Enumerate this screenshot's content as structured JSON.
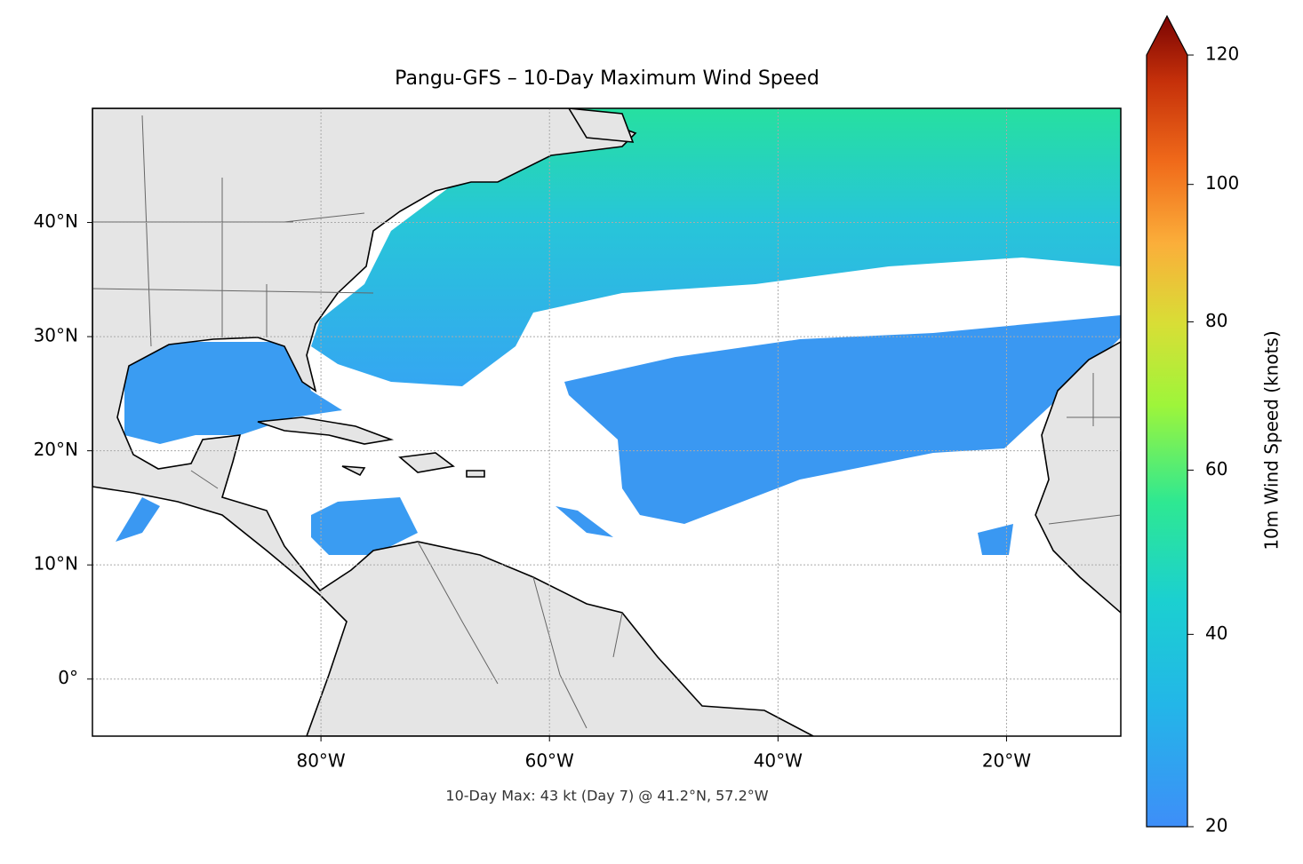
{
  "chart_data": {
    "type": "map",
    "title": "Pangu-GFS – 10-Day Maximum Wind Speed",
    "subtitle": "10-Day Max: 43 kt (Day 7) @ 41.2°N, 57.2°W",
    "xlim": [
      -100,
      -10
    ],
    "xticks": [
      {
        "value": -80,
        "label": "80°W"
      },
      {
        "value": -60,
        "label": "60°W"
      },
      {
        "value": -40,
        "label": "40°W"
      },
      {
        "value": -20,
        "label": "20°W"
      }
    ],
    "ylim": [
      -5,
      50
    ],
    "yticks": [
      {
        "value": 0,
        "label": "0°"
      },
      {
        "value": 10,
        "label": "10°N"
      },
      {
        "value": 20,
        "label": "20°N"
      },
      {
        "value": 30,
        "label": "30°N"
      },
      {
        "value": 40,
        "label": "40°N"
      }
    ],
    "grid": true,
    "colorbar": {
      "label": "10m Wind Speed (knots)",
      "lim": [
        20,
        120
      ],
      "ticks": [
        20,
        40,
        60,
        80,
        100,
        120
      ],
      "norm": "power",
      "gamma": 0.7
    }
  }
}
